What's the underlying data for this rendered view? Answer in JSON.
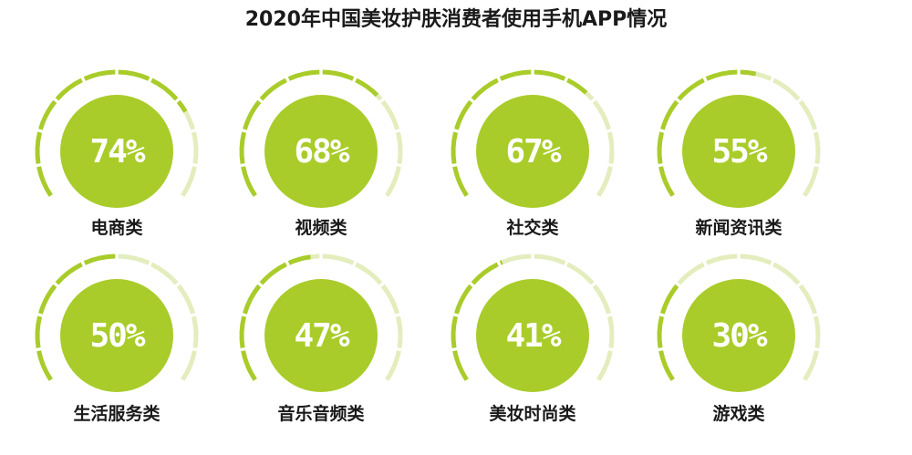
{
  "colors": {
    "accent": "#a9cc2a",
    "track": "#e3edbd",
    "text": "#1a1a1a",
    "value_text": "#ffffff"
  },
  "chart_data": {
    "type": "gauge",
    "title": "2020年中国美妆护肤消费者使用手机APP情况",
    "categories": [
      "电商类",
      "视频类",
      "社交类",
      "新闻资讯类",
      "生活服务类",
      "音乐音频类",
      "美妆时尚类",
      "游戏类"
    ],
    "values": [
      74,
      68,
      67,
      55,
      50,
      47,
      41,
      30
    ],
    "value_labels": [
      "74%",
      "68%",
      "67%",
      "55%",
      "50%",
      "47%",
      "41%",
      "30%"
    ],
    "unit": "%",
    "range": [
      0,
      100
    ]
  }
}
